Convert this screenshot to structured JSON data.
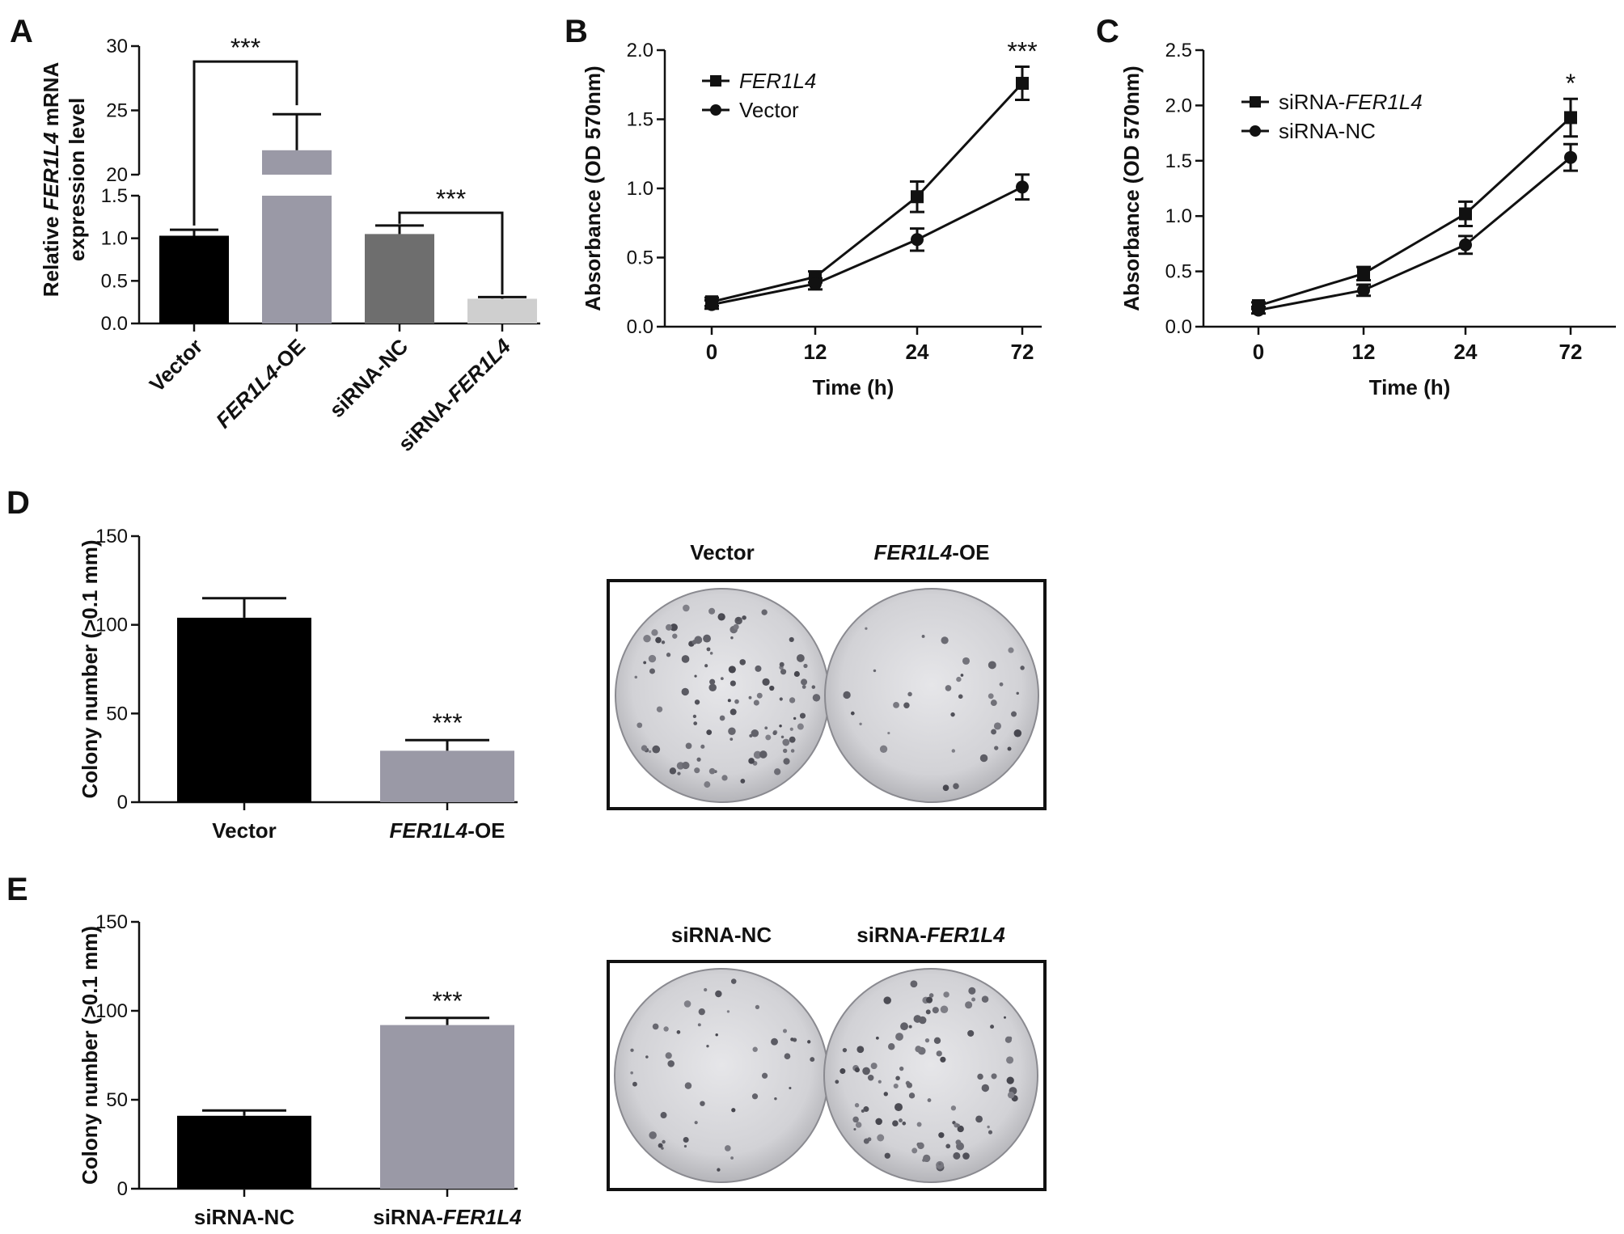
{
  "panels": {
    "A": "A",
    "B": "B",
    "C": "C",
    "D": "D",
    "E": "E"
  },
  "chart_data": [
    {
      "id": "A",
      "type": "bar",
      "ylabel_parts": [
        "Relative ",
        "FER1L4",
        " mRNA"
      ],
      "ylabel_line2": "expression level",
      "categories": [
        {
          "parts": [
            {
              "t": "Vector",
              "i": false
            }
          ]
        },
        {
          "parts": [
            {
              "t": "FER1L4",
              "i": true
            },
            {
              "t": "-OE",
              "i": false
            }
          ]
        },
        {
          "parts": [
            {
              "t": "siRNA-NC",
              "i": false
            }
          ]
        },
        {
          "parts": [
            {
              "t": "siRNA-",
              "i": false
            },
            {
              "t": "FER1L4",
              "i": true
            }
          ]
        }
      ],
      "values": [
        1.03,
        21.9,
        1.05,
        0.29
      ],
      "errors": [
        0.07,
        2.8,
        0.1,
        0.02
      ],
      "colors": [
        "#000000",
        "#9a99a6",
        "#6e6e6e",
        "#cfcfcf"
      ],
      "y_ticks_lower": [
        "0.0",
        "0.5",
        "1.0",
        "1.5"
      ],
      "y_ticks_upper": [
        "20",
        "25",
        "30"
      ],
      "axis_break": [
        1.5,
        20
      ],
      "ylim": [
        0,
        30
      ],
      "brackets": [
        {
          "from": 0,
          "to": 1,
          "label": "***"
        },
        {
          "from": 2,
          "to": 3,
          "label": "***"
        }
      ]
    },
    {
      "id": "B",
      "type": "line",
      "xlabel": "Time (h)",
      "ylabel": "Absorbance (OD 570nm)",
      "x": [
        "0",
        "12",
        "24",
        "72"
      ],
      "ylim": [
        0,
        2.0
      ],
      "y_ticks": [
        "0.0",
        "0.5",
        "1.0",
        "1.5",
        "2.0"
      ],
      "series": [
        {
          "name": "FER1L4",
          "italic": true,
          "marker": "square",
          "values": [
            0.18,
            0.36,
            0.94,
            1.76
          ],
          "errors": [
            0.03,
            0.04,
            0.11,
            0.12
          ]
        },
        {
          "name": "Vector",
          "italic": false,
          "marker": "circle",
          "values": [
            0.16,
            0.31,
            0.63,
            1.01
          ],
          "errors": [
            0.03,
            0.04,
            0.08,
            0.09
          ]
        }
      ],
      "annotation": "***",
      "legend": "top-left"
    },
    {
      "id": "C",
      "type": "line",
      "xlabel": "Time (h)",
      "ylabel": "Absorbance (OD 570nm)",
      "x": [
        "0",
        "12",
        "24",
        "72"
      ],
      "ylim": [
        0,
        2.5
      ],
      "y_ticks": [
        "0.0",
        "0.5",
        "1.0",
        "1.5",
        "2.0",
        "2.5"
      ],
      "series": [
        {
          "name_parts": [
            {
              "t": "siRNA-",
              "i": false
            },
            {
              "t": "FER1L4",
              "i": true
            }
          ],
          "marker": "square",
          "values": [
            0.19,
            0.48,
            1.02,
            1.89
          ],
          "errors": [
            0.03,
            0.06,
            0.11,
            0.17
          ]
        },
        {
          "name_parts": [
            {
              "t": "siRNA-NC",
              "i": false
            }
          ],
          "marker": "circle",
          "values": [
            0.15,
            0.33,
            0.74,
            1.53
          ],
          "errors": [
            0.03,
            0.05,
            0.08,
            0.12
          ]
        }
      ],
      "annotation": "*",
      "legend": "top-left"
    },
    {
      "id": "D",
      "type": "bar",
      "ylabel": "Colony number (>0.1 mm)",
      "categories": [
        {
          "parts": [
            {
              "t": "Vector",
              "i": false
            }
          ]
        },
        {
          "parts": [
            {
              "t": "FER1L4",
              "i": true
            },
            {
              "t": "-OE",
              "i": false
            }
          ]
        }
      ],
      "values": [
        104,
        29
      ],
      "errors": [
        11,
        6
      ],
      "colors": [
        "#000000",
        "#9a99a6"
      ],
      "ylim": [
        0,
        150
      ],
      "y_ticks": [
        "0",
        "50",
        "100",
        "150"
      ],
      "annotation": "***"
    },
    {
      "id": "E",
      "type": "bar",
      "ylabel": "Colony number (>0.1 mm)",
      "categories": [
        {
          "parts": [
            {
              "t": "siRNA-NC",
              "i": false
            }
          ]
        },
        {
          "parts": [
            {
              "t": "siRNA-",
              "i": false
            },
            {
              "t": "FER1L4",
              "i": true
            }
          ]
        }
      ],
      "values": [
        41,
        92
      ],
      "errors": [
        3,
        4
      ],
      "colors": [
        "#000000",
        "#9a99a6"
      ],
      "ylim": [
        0,
        150
      ],
      "y_ticks": [
        "0",
        "50",
        "100",
        "150"
      ],
      "annotation": "***"
    }
  ],
  "plates": [
    {
      "id": "D-plates",
      "labels": [
        {
          "parts": [
            {
              "t": "Vector",
              "i": false
            }
          ]
        },
        {
          "parts": [
            {
              "t": "FER1L4",
              "i": true
            },
            {
              "t": "-OE",
              "i": false
            }
          ]
        }
      ],
      "colony_density": [
        110,
        35
      ]
    },
    {
      "id": "E-plates",
      "labels": [
        {
          "parts": [
            {
              "t": "siRNA-NC",
              "i": false
            }
          ]
        },
        {
          "parts": [
            {
              "t": "siRNA-",
              "i": false
            },
            {
              "t": "FER1L4",
              "i": true
            }
          ]
        }
      ],
      "colony_density": [
        45,
        95
      ]
    }
  ]
}
